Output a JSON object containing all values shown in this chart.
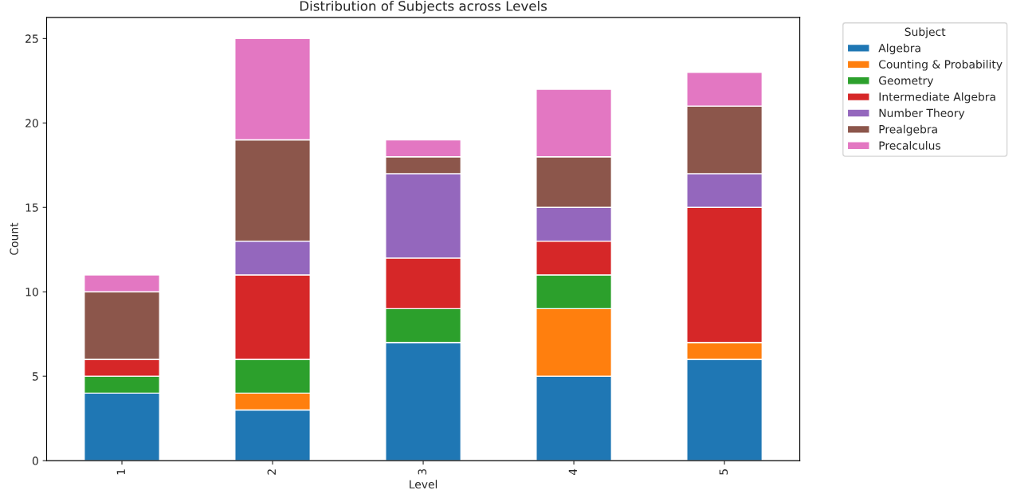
{
  "chart_data": {
    "type": "bar",
    "stacked": true,
    "title": "Distribution of Subjects across Levels",
    "xlabel": "Level",
    "ylabel": "Count",
    "legend_title": "Subject",
    "legend": "top right",
    "grid": false,
    "categories": [
      "1",
      "2",
      "3",
      "4",
      "5"
    ],
    "ylim": [
      0,
      26.25
    ],
    "yticks": [
      0,
      5,
      10,
      15,
      20,
      25
    ],
    "series": [
      {
        "name": "Algebra",
        "color": "#1f77b4",
        "values": [
          4,
          3,
          7,
          5,
          6
        ]
      },
      {
        "name": "Counting & Probability",
        "color": "#ff7f0e",
        "values": [
          0,
          1,
          0,
          4,
          1
        ]
      },
      {
        "name": "Geometry",
        "color": "#2ca02c",
        "values": [
          1,
          2,
          2,
          2,
          0
        ]
      },
      {
        "name": "Intermediate Algebra",
        "color": "#d62728",
        "values": [
          1,
          5,
          3,
          2,
          8
        ]
      },
      {
        "name": "Number Theory",
        "color": "#9467bd",
        "values": [
          0,
          2,
          5,
          2,
          2
        ]
      },
      {
        "name": "Prealgebra",
        "color": "#8c564b",
        "values": [
          4,
          6,
          1,
          3,
          4
        ]
      },
      {
        "name": "Precalculus",
        "color": "#e377c2",
        "values": [
          1,
          6,
          1,
          4,
          2
        ]
      }
    ]
  }
}
